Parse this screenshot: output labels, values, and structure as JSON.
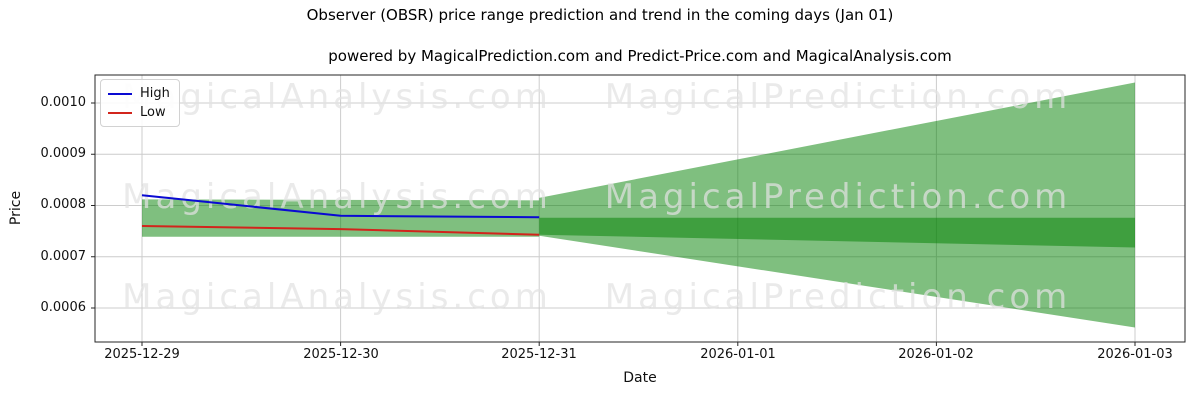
{
  "title": "Observer (OBSR) price range prediction and trend in the coming days (Jan 01)",
  "subtitle": "powered by MagicalPrediction.com and Predict-Price.com and MagicalAnalysis.com",
  "watermarks": {
    "left": "MagicalAnalysis.com",
    "right": "MagicalPrediction.com"
  },
  "legend": {
    "items": [
      {
        "label": "High",
        "color": "#0a0ad2"
      },
      {
        "label": "Low",
        "color": "#d2251c"
      }
    ]
  },
  "colors": {
    "high_line": "#0a0ad2",
    "low_line": "#d2251c",
    "band_fill": "rgba(0,128,0,0.5)",
    "grid": "#cccccc",
    "spine": "#262626"
  },
  "chart_data": {
    "type": "line",
    "title": "Observer (OBSR) price range prediction and trend in the coming days (Jan 01)",
    "xlabel": "Date",
    "ylabel": "Price",
    "x_ticks": [
      "2025-12-29",
      "2025-12-30",
      "2025-12-31",
      "2026-01-01",
      "2026-01-02",
      "2026-01-03"
    ],
    "y_ticks": [
      0.001,
      0.0009,
      0.0008,
      0.0007,
      0.0006
    ],
    "y_tick_labels": [
      "0.0010",
      "0.0009",
      "0.0008",
      "0.0007",
      "0.0006"
    ],
    "ylim": [
      0.000535,
      0.001057
    ],
    "grid": true,
    "legend_position": "upper left",
    "series": [
      {
        "name": "High",
        "color": "#0a0ad2",
        "x": [
          "2025-12-29",
          "2025-12-30",
          "2025-12-31"
        ],
        "values": [
          0.00082,
          0.00078,
          0.000777
        ]
      },
      {
        "name": "Low",
        "color": "#d2251c",
        "x": [
          "2025-12-29",
          "2025-12-30",
          "2025-12-31"
        ],
        "values": [
          0.00076,
          0.000754,
          0.000743
        ]
      }
    ],
    "bands": [
      {
        "name": "history-range",
        "fill": "rgba(0,128,0,0.5)",
        "x": [
          "2025-12-29",
          "2025-12-31"
        ],
        "upper": [
          0.000812,
          0.00081
        ],
        "lower": [
          0.000739,
          0.000739
        ]
      },
      {
        "name": "prediction-fan",
        "fill": "rgba(0,128,0,0.5)",
        "x": [
          "2025-12-31",
          "2026-01-03"
        ],
        "upper": [
          0.000815,
          0.00104
        ],
        "lower": [
          0.000741,
          0.000562
        ]
      },
      {
        "name": "prediction-core",
        "fill": "rgba(0,128,0,0.5)",
        "x": [
          "2025-12-31",
          "2026-01-03"
        ],
        "upper": [
          0.000776,
          0.000776
        ],
        "lower": [
          0.000743,
          0.000718
        ]
      }
    ]
  }
}
